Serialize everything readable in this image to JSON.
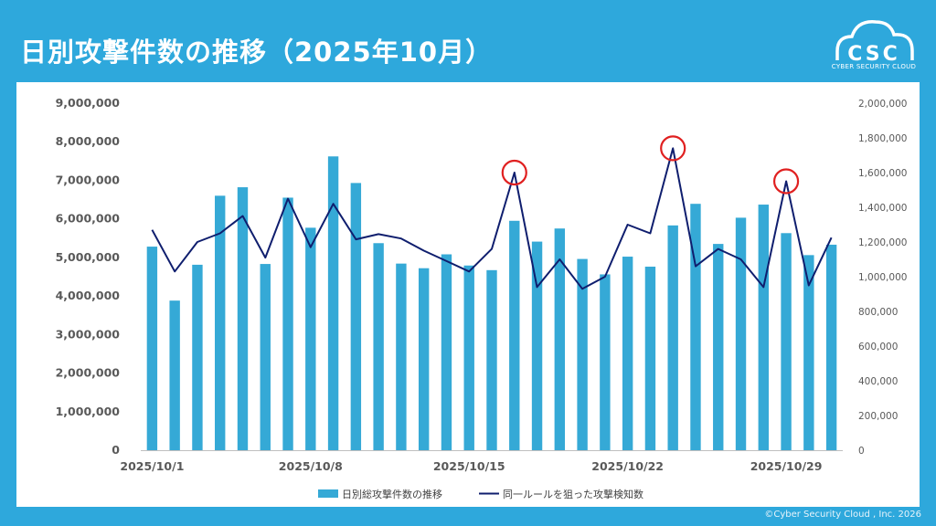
{
  "slide": {
    "title": "日別攻撃件数の推移（2025年10月）",
    "copyright": "©Cyber Security Cloud , Inc. 2026"
  },
  "logo": {
    "text": "CSC",
    "subtext": "CYBER SECURITY CLOUD",
    "icon": "cloud-logo-icon"
  },
  "colors": {
    "bar": "#35a9d6",
    "line": "#0f1e6e",
    "highlight": "#e02020",
    "axis_text": "#595959",
    "background": "#2ea8dc"
  },
  "chart_data": {
    "type": "bar+line",
    "categories": [
      "2025/10/1",
      "2025/10/2",
      "2025/10/3",
      "2025/10/4",
      "2025/10/5",
      "2025/10/6",
      "2025/10/7",
      "2025/10/8",
      "2025/10/9",
      "2025/10/10",
      "2025/10/11",
      "2025/10/12",
      "2025/10/13",
      "2025/10/14",
      "2025/10/15",
      "2025/10/16",
      "2025/10/17",
      "2025/10/18",
      "2025/10/19",
      "2025/10/20",
      "2025/10/21",
      "2025/10/22",
      "2025/10/23",
      "2025/10/24",
      "2025/10/25",
      "2025/10/26",
      "2025/10/27",
      "2025/10/28",
      "2025/10/29",
      "2025/10/30",
      "2025/10/31"
    ],
    "x_tick_labels": [
      "2025/10/1",
      "2025/10/8",
      "2025/10/15",
      "2025/10/22",
      "2025/10/29"
    ],
    "series": [
      {
        "name": "日別総攻撃件数の推移",
        "type": "bar",
        "axis": "left",
        "values": [
          5280000,
          3880000,
          4810000,
          6600000,
          6820000,
          4830000,
          6550000,
          5770000,
          7620000,
          6930000,
          5370000,
          4840000,
          4720000,
          5080000,
          4790000,
          4670000,
          5950000,
          5410000,
          5750000,
          4960000,
          4560000,
          5020000,
          4760000,
          5830000,
          6390000,
          5350000,
          6030000,
          6370000,
          5630000,
          5060000,
          5330000
        ]
      },
      {
        "name": "同一ルールを狙った攻撃検知数",
        "type": "line",
        "axis": "right",
        "values": [
          1270000,
          1030000,
          1200000,
          1250000,
          1350000,
          1110000,
          1450000,
          1170000,
          1420000,
          1215000,
          1245000,
          1220000,
          1150000,
          1090000,
          1030000,
          1160000,
          1600000,
          940000,
          1100000,
          930000,
          1000000,
          1300000,
          1250000,
          1740000,
          1060000,
          1160000,
          1100000,
          940000,
          1550000,
          950000,
          1225000
        ]
      }
    ],
    "y_left": {
      "min": 0,
      "max": 9000000,
      "step": 1000000,
      "tick_labels": [
        "0",
        "1,000,000",
        "2,000,000",
        "3,000,000",
        "4,000,000",
        "5,000,000",
        "6,000,000",
        "7,000,000",
        "8,000,000",
        "9,000,000"
      ]
    },
    "y_right": {
      "min": 0,
      "max": 2000000,
      "step": 200000,
      "tick_labels": [
        "0",
        "200,000",
        "400,000",
        "600,000",
        "800,000",
        "1,000,000",
        "1,200,000",
        "1,400,000",
        "1,600,000",
        "1,800,000",
        "2,000,000"
      ]
    },
    "highlighted_points": [
      "2025/10/17",
      "2025/10/24",
      "2025/10/29"
    ],
    "legend_position": "bottom",
    "grid": false
  }
}
